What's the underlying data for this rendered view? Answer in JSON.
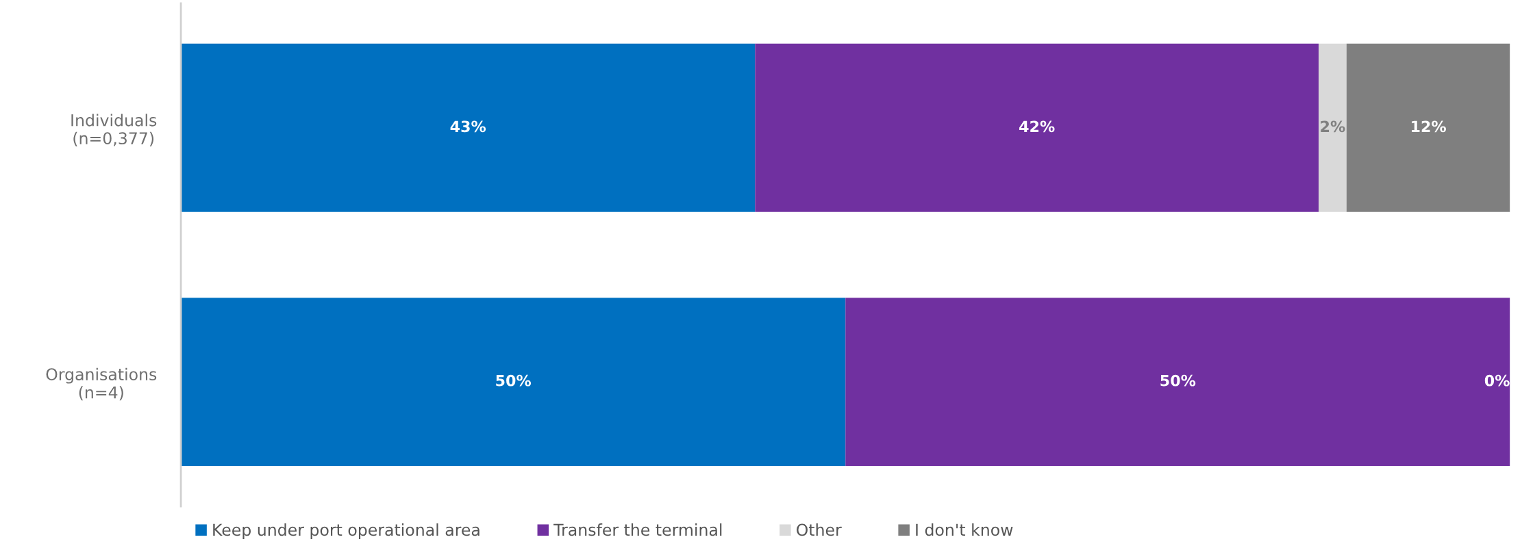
{
  "chart_data": {
    "type": "bar",
    "orientation": "horizontal",
    "stacked": true,
    "categories": [
      "Individuals\n(n=0,377)",
      "Organisations\n(n=4)"
    ],
    "xlim": [
      0,
      100
    ],
    "tick_labels": "y",
    "grid": false,
    "legend": "bottom",
    "series": [
      {
        "name": "Keep under port operational area",
        "color": "#0070c0",
        "values": [
          43.2,
          50
        ],
        "value_labels": [
          "43%",
          "50%"
        ]
      },
      {
        "name": "Transfer the terminal",
        "color": "#7030a0",
        "values": [
          42.4,
          50
        ],
        "value_labels": [
          "42%",
          "50%"
        ]
      },
      {
        "name": "Other",
        "color": "#d9d9d9",
        "values": [
          2.1,
          0
        ],
        "value_labels": [
          "2%",
          null
        ]
      },
      {
        "name": "I don't know",
        "color": "#7f7f7f",
        "values": [
          12.3,
          0
        ],
        "value_labels": [
          "12%",
          "0%"
        ]
      }
    ]
  }
}
